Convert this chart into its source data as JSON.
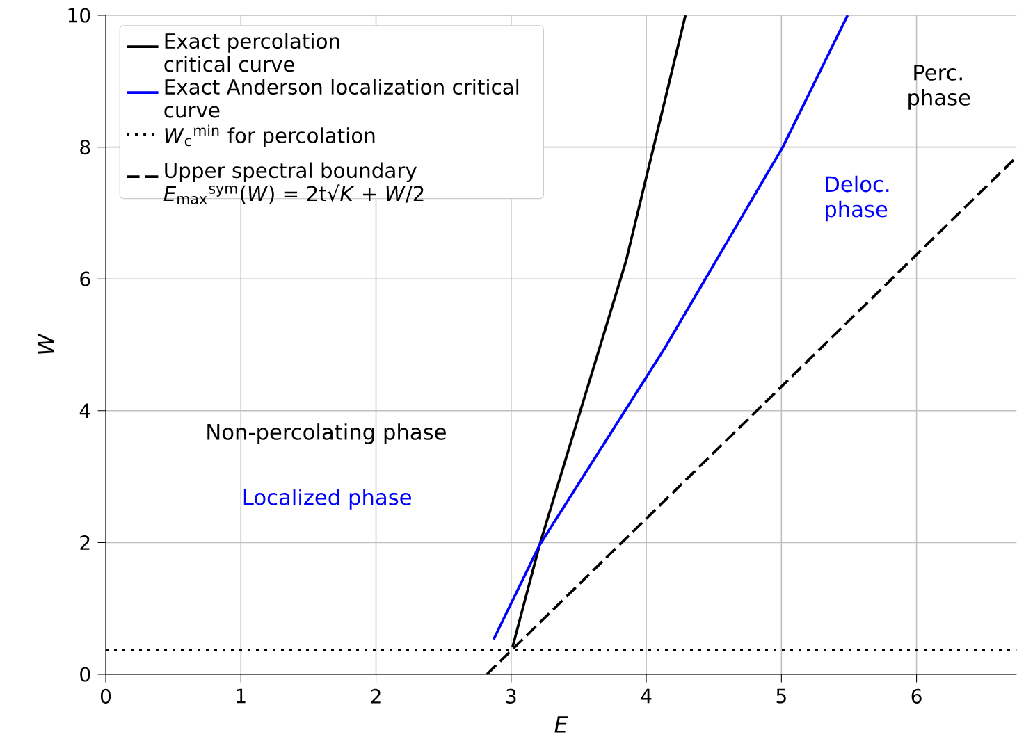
{
  "chart_data": {
    "type": "line",
    "xlabel": "E",
    "ylabel": "W",
    "xlim": [
      0,
      6.74
    ],
    "ylim": [
      0,
      10
    ],
    "xticks": [
      0,
      1,
      2,
      3,
      4,
      5,
      6
    ],
    "yticks": [
      0,
      2,
      4,
      6,
      8,
      10
    ],
    "grid": true,
    "legend": "top left",
    "series": [
      {
        "name": "Exact percolation critical curve",
        "color": "#000000",
        "line_style": "solid",
        "x": [
          3.01,
          3.21,
          3.85,
          4.29
        ],
        "values": [
          0.41,
          1.96,
          6.27,
          10
        ]
      },
      {
        "name": "Exact Anderson localization critical curve",
        "color": "#0000ff",
        "line_style": "solid",
        "x": [
          2.87,
          3.21,
          4.14,
          5.01,
          5.49
        ],
        "values": [
          0.53,
          1.96,
          4.96,
          8.0,
          10
        ]
      },
      {
        "name": "*W*$_{c}$$^{min}$ for percolation",
        "color": "#000000",
        "line_style": "dotted",
        "x": [
          0,
          6.74
        ],
        "values": [
          0.37,
          0.37
        ]
      },
      {
        "name": "Upper spectral boundary *E*$_{max}$$^{sym}$(*W*) = 2t√*K* + *W*/2",
        "color": "#000000",
        "line_style": "dashed",
        "x": [
          2.82,
          6.74
        ],
        "values": [
          0,
          7.85
        ]
      }
    ],
    "annotations": [
      "Non-percolating phase",
      "Localized phase",
      "Deloc. phase",
      "Perc. phase"
    ]
  }
}
